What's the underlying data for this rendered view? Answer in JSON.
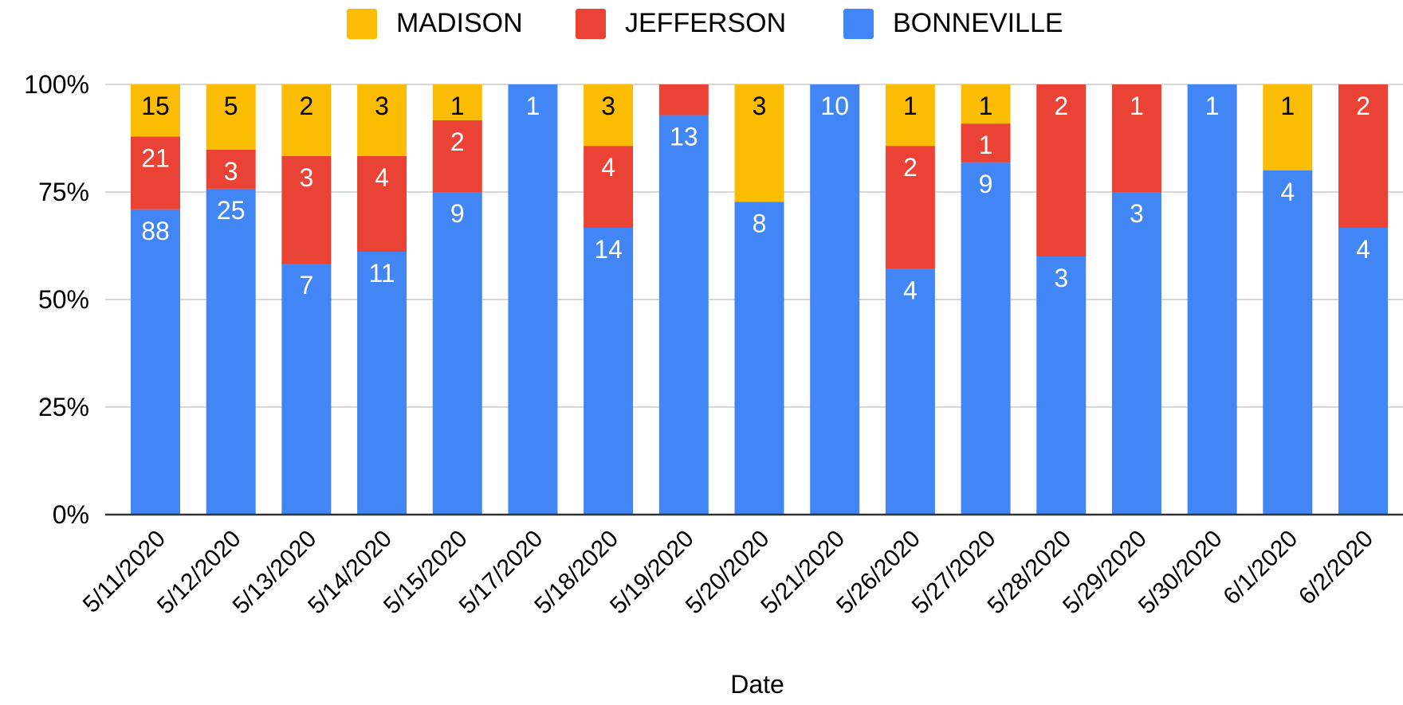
{
  "chart_data": {
    "type": "bar",
    "stacking": "percent",
    "title": "",
    "xlabel": "Date",
    "ylabel": "",
    "ylim": [
      0,
      100
    ],
    "yticks": [
      "0%",
      "25%",
      "50%",
      "75%",
      "100%"
    ],
    "grid": true,
    "legend_position": "top",
    "categories": [
      "5/11/2020",
      "5/12/2020",
      "5/13/2020",
      "5/14/2020",
      "5/15/2020",
      "5/17/2020",
      "5/18/2020",
      "5/19/2020",
      "5/20/2020",
      "5/21/2020",
      "5/26/2020",
      "5/27/2020",
      "5/28/2020",
      "5/29/2020",
      "5/30/2020",
      "6/1/2020",
      "6/2/2020"
    ],
    "series": [
      {
        "name": "BONNEVILLE",
        "color": "#4285f4",
        "label_color": "#ffffff",
        "values": [
          88,
          25,
          7,
          11,
          9,
          1,
          14,
          13,
          8,
          10,
          4,
          9,
          3,
          3,
          1,
          4,
          4
        ]
      },
      {
        "name": "JEFFERSON",
        "color": "#ea4335",
        "label_color": "#ffffff",
        "values": [
          21,
          3,
          3,
          4,
          2,
          0,
          4,
          1,
          0,
          0,
          2,
          1,
          2,
          1,
          0,
          0,
          2
        ]
      },
      {
        "name": "MADISON",
        "color": "#fbbc04",
        "label_color": "#000000",
        "values": [
          15,
          5,
          2,
          3,
          1,
          0,
          3,
          0,
          3,
          0,
          1,
          1,
          0,
          0,
          0,
          1,
          0
        ]
      }
    ],
    "legend_order": [
      "MADISON",
      "JEFFERSON",
      "BONNEVILLE"
    ],
    "hidden_labels": [
      [],
      [],
      [],
      [],
      [],
      [],
      [],
      [
        "JEFFERSON"
      ],
      [],
      [],
      [],
      [],
      [],
      [],
      [],
      [],
      []
    ]
  }
}
